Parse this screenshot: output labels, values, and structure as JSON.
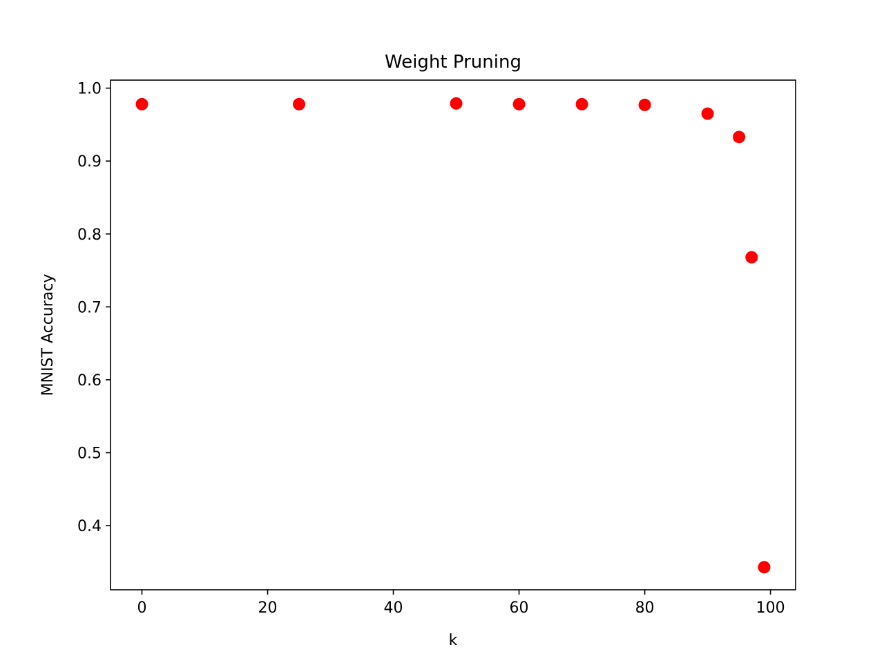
{
  "chart_data": {
    "type": "scatter",
    "title": "Weight Pruning",
    "xlabel": "k",
    "ylabel": "MNIST Accuracy",
    "xlim": [
      -5,
      104
    ],
    "ylim": [
      0.312,
      1.011
    ],
    "xticks": [
      0,
      20,
      40,
      60,
      80,
      100
    ],
    "xtick_labels": [
      "0",
      "20",
      "40",
      "60",
      "80",
      "100"
    ],
    "yticks": [
      0.4,
      0.5,
      0.6,
      0.7,
      0.8,
      0.9,
      1.0
    ],
    "ytick_labels": [
      "0.4",
      "0.5",
      "0.6",
      "0.7",
      "0.8",
      "0.9",
      "1.0"
    ],
    "grid": false,
    "series": [
      {
        "color": "#ff0000",
        "marker": "circle",
        "x": [
          0,
          25,
          50,
          60,
          70,
          80,
          90,
          95,
          97,
          99
        ],
        "y": [
          0.978,
          0.978,
          0.979,
          0.978,
          0.978,
          0.977,
          0.965,
          0.933,
          0.768,
          0.343
        ]
      }
    ]
  }
}
